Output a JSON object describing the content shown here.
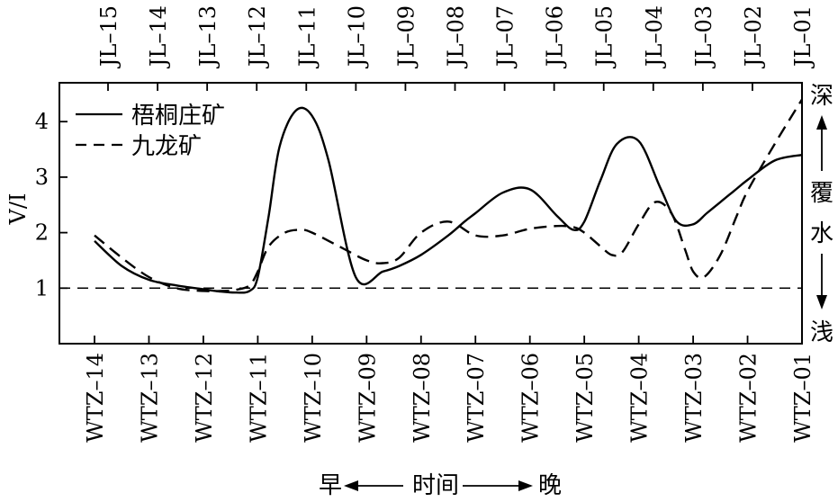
{
  "chart_data": {
    "type": "line",
    "ylabel": "V/I",
    "ylim": [
      0,
      4.7
    ],
    "yticks": [
      1,
      2,
      3,
      4
    ],
    "bottom_categories": [
      "WTZ–14",
      "WTZ–13",
      "WTZ–12",
      "WTZ–11",
      "WTZ–10",
      "WTZ–09",
      "WTZ–08",
      "WTZ–07",
      "WTZ–06",
      "WTZ–05",
      "WTZ–04",
      "WTZ–03",
      "WTZ–02",
      "WTZ–01"
    ],
    "top_categories": [
      "JL–15",
      "JL–14",
      "JL–13",
      "JL–12",
      "JL–11",
      "JL–10",
      "JL–09",
      "JL–08",
      "JL–07",
      "JL–06",
      "JL–05",
      "JL–04",
      "JL–03",
      "JL–02",
      "JL–01"
    ],
    "reference_line": 1,
    "legend": {
      "position": "top-left"
    },
    "series": [
      {
        "name": "梧桐庄矿",
        "style": "solid",
        "x": [
          0,
          0.5,
          1,
          1.5,
          2,
          2.3,
          2.6,
          2.85,
          3,
          3.2,
          3.4,
          3.7,
          4,
          4.3,
          4.8,
          5.3,
          5.6,
          6,
          6.5,
          6.8,
          7,
          7.5,
          8,
          8.5,
          8.8,
          9,
          9.3,
          9.6,
          10,
          10.4,
          10.7,
          11,
          11.25,
          11.5,
          11.75,
          12,
          12.5,
          13
        ],
        "values": [
          1.85,
          1.4,
          1.15,
          1.05,
          0.98,
          0.94,
          0.92,
          0.95,
          1.2,
          2.3,
          3.55,
          4.2,
          4.1,
          3.3,
          1.2,
          1.3,
          1.4,
          1.6,
          1.95,
          2.2,
          2.35,
          2.72,
          2.78,
          2.3,
          2.05,
          2.2,
          2.95,
          3.6,
          3.65,
          2.8,
          2.2,
          2.15,
          2.35,
          2.55,
          2.75,
          2.95,
          3.3,
          3.4
        ]
      },
      {
        "name": "九龙矿",
        "style": "dashed",
        "x": [
          0,
          0.5,
          1,
          1.5,
          2,
          2.3,
          2.6,
          2.85,
          3,
          3.2,
          3.5,
          3.8,
          4,
          4.5,
          5,
          5.3,
          5.6,
          6,
          6.5,
          7,
          7.5,
          8,
          8.5,
          8.8,
          9,
          9.3,
          9.5,
          9.7,
          10,
          10.3,
          10.6,
          10.85,
          11,
          11.2,
          11.5,
          11.8,
          12,
          12.5,
          13
        ],
        "values": [
          1.95,
          1.55,
          1.2,
          1.0,
          0.95,
          0.95,
          0.97,
          1.05,
          1.3,
          1.75,
          2.0,
          2.05,
          2.0,
          1.75,
          1.5,
          1.45,
          1.55,
          2.0,
          2.2,
          1.95,
          1.95,
          2.07,
          2.12,
          2.1,
          2.0,
          1.75,
          1.6,
          1.65,
          2.15,
          2.55,
          2.35,
          1.7,
          1.3,
          1.2,
          1.6,
          2.3,
          2.75,
          3.6,
          4.4
        ]
      }
    ],
    "right_axis": {
      "top": "深",
      "mid1": "覆",
      "mid2": "水",
      "bottom": "浅"
    },
    "time_axis": {
      "left": "早",
      "mid": "时间",
      "right": "晚"
    }
  }
}
